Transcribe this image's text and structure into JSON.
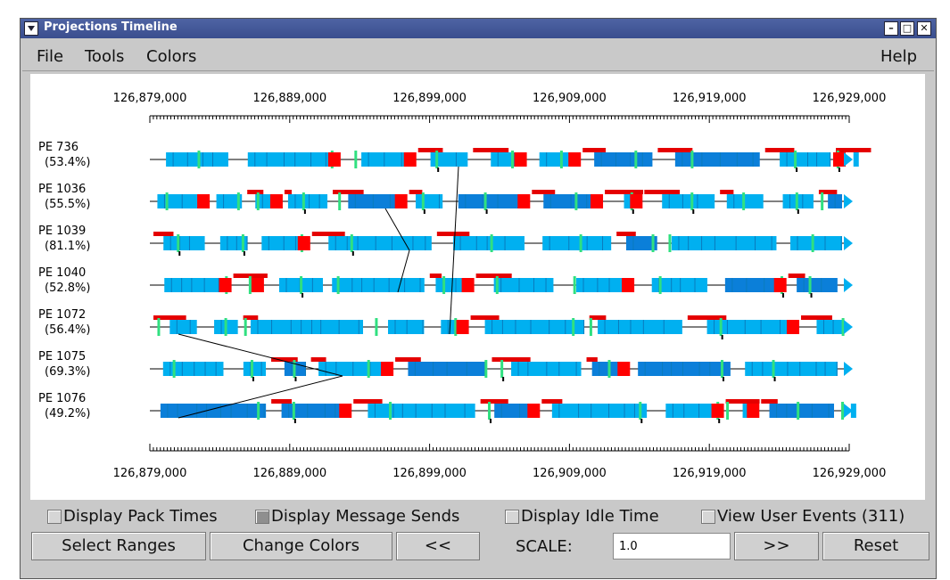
{
  "window": {
    "title": "Projections Timeline"
  },
  "menubar": {
    "items": [
      "File",
      "Tools",
      "Colors"
    ],
    "help": "Help"
  },
  "timeline": {
    "axis_labels": [
      "126,879,000",
      "126,889,000",
      "126,899,000",
      "126,909,000",
      "126,919,000",
      "126,929,000"
    ],
    "rows": [
      {
        "pe": "PE 736",
        "util": "(53.4%)"
      },
      {
        "pe": "PE 1036",
        "util": "(55.5%)"
      },
      {
        "pe": "PE 1039",
        "util": "(81.1%)"
      },
      {
        "pe": "PE 1040",
        "util": "(52.8%)"
      },
      {
        "pe": "PE 1072",
        "util": "(56.4%)"
      },
      {
        "pe": "PE 1075",
        "util": "(69.3%)"
      },
      {
        "pe": "PE 1076",
        "util": "(49.2%)"
      }
    ],
    "colors": {
      "busy": "#00b0f0",
      "busy_dark": "#0b7fd9",
      "pack": "#e50000",
      "send_tick": "#30e080",
      "idle": "#ff0000",
      "message": "#0000cc"
    }
  },
  "options": {
    "pack_times": "Display Pack Times",
    "message_sends": "Display Message Sends",
    "idle_time": "Display Idle Time",
    "user_events": "View User Events (311)"
  },
  "buttons": {
    "select_ranges": "Select Ranges",
    "change_colors": "Change Colors",
    "prev": "<<",
    "scale_label": "SCALE:",
    "scale_value": "1.0",
    "next": ">>",
    "reset": "Reset"
  }
}
